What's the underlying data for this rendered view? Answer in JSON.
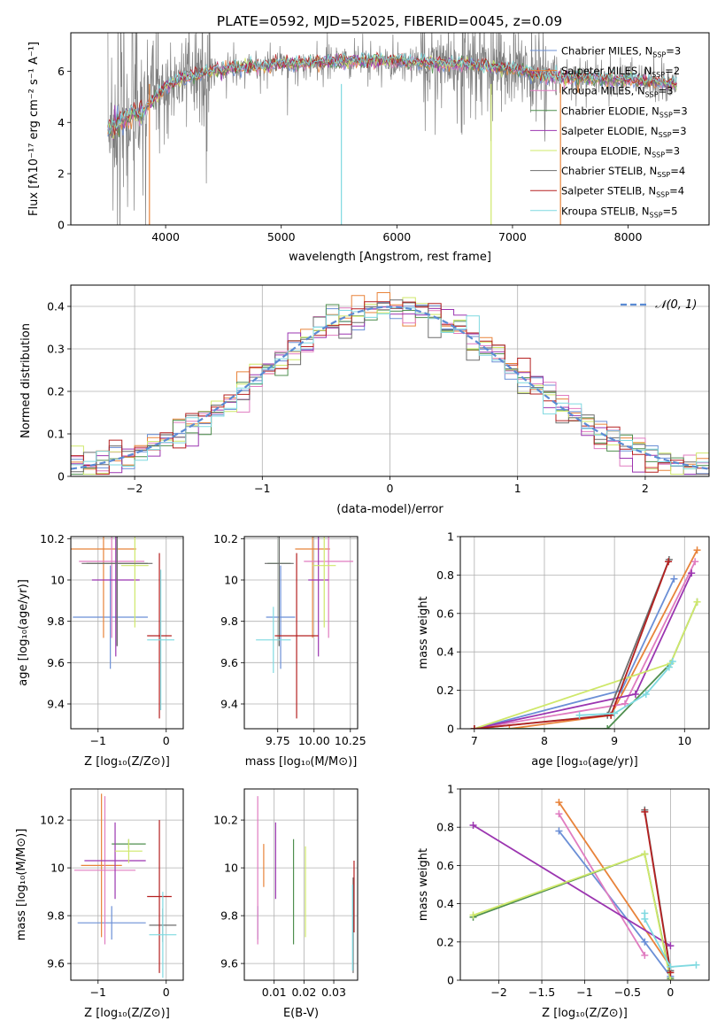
{
  "figure_title": "PLATE=0592, MJD=52025, FIBERID=0045, z=0.09",
  "colors": {
    "Chabrier MILES": "#6b8fd6",
    "Salpeter MILES": "#e8833a",
    "Kroupa MILES": "#e07cc0",
    "Chabrier ELODIE": "#4f8f4f",
    "Salpeter ELODIE": "#9b35b0",
    "Kroupa ELODIE": "#cfe86a",
    "Chabrier STELIB": "#6e6e6e",
    "Salpeter STELIB": "#b52020",
    "Kroupa STELIB": "#7fd9e0",
    "data": "#7f7f7f",
    "normal": "#5b8bd4"
  },
  "chart_data": [
    {
      "id": "spectrum",
      "type": "line",
      "xlabel": "wavelength [Angstrom, rest frame]",
      "ylabel": "Flux [fλ10⁻¹⁷ erg cm⁻² s⁻¹ A⁻¹]",
      "xlim": [
        3180,
        8700
      ],
      "ylim": [
        0,
        7.5
      ],
      "xticks": [
        4000,
        5000,
        6000,
        7000,
        8000
      ],
      "yticks": [
        0,
        2,
        4,
        6
      ],
      "grid": false,
      "legend_position": "right",
      "continuum": {
        "x": [
          3500,
          3600,
          3700,
          3800,
          3900,
          4000,
          4100,
          4200,
          4400,
          4600,
          4800,
          5000,
          5200,
          5400,
          5600,
          5800,
          6000,
          6200,
          6400,
          6600,
          6800,
          7000,
          7200,
          7400,
          7600,
          7800,
          8000,
          8200,
          8400
        ],
        "y": [
          3.7,
          4.0,
          4.3,
          4.4,
          4.9,
          5.4,
          5.6,
          5.8,
          6.0,
          6.1,
          6.2,
          6.3,
          6.3,
          6.35,
          6.4,
          6.4,
          6.4,
          6.35,
          6.3,
          6.3,
          6.2,
          6.1,
          5.9,
          5.75,
          5.75,
          5.7,
          5.65,
          5.6,
          5.5
        ]
      },
      "series_legend": [
        {
          "name": "Chabrier MILES",
          "nssp": "3"
        },
        {
          "name": "Salpeter MILES",
          "nssp": "2"
        },
        {
          "name": "Kroupa MILES",
          "nssp": "3"
        },
        {
          "name": "Chabrier ELODIE",
          "nssp": "3"
        },
        {
          "name": "Salpeter ELODIE",
          "nssp": "3"
        },
        {
          "name": "Kroupa ELODIE",
          "nssp": "3"
        },
        {
          "name": "Chabrier STELIB",
          "nssp": "4"
        },
        {
          "name": "Salpeter STELIB",
          "nssp": "4"
        },
        {
          "name": "Kroupa STELIB",
          "nssp": "5"
        }
      ]
    },
    {
      "id": "residuals",
      "type": "line",
      "xlabel": "(data-model)/error",
      "ylabel": "Normed distribution",
      "xlim": [
        -2.5,
        2.5
      ],
      "ylim": [
        0,
        0.45
      ],
      "xticks": [
        -2,
        -1,
        0,
        1,
        2
      ],
      "yticks": [
        0.0,
        0.1,
        0.2,
        0.3,
        0.4
      ],
      "grid": true,
      "legend": "𝒩(0, 1)",
      "legend_position": "top-right",
      "bin_width": 0.1
    },
    {
      "id": "age_Z",
      "type": "scatter",
      "xlabel": "Z [log₁₀(Z/Z⊙)]",
      "ylabel": "age  [log₁₀(age/yr)]",
      "xlim": [
        -1.4,
        0.25
      ],
      "ylim": [
        9.28,
        10.21
      ],
      "xticks": [
        -1,
        0
      ],
      "yticks": [
        9.4,
        9.6,
        9.8,
        10.0,
        10.2
      ],
      "grid": true,
      "points": [
        {
          "s": "Chabrier MILES",
          "x": -0.82,
          "y": 9.82,
          "xerr": 0.55,
          "yerr": 0.25
        },
        {
          "s": "Salpeter MILES",
          "x": -0.92,
          "y": 10.15,
          "xerr": 0.48,
          "yerr": 0.43
        },
        {
          "s": "Kroupa MILES",
          "x": -0.8,
          "y": 10.09,
          "xerr": 0.48,
          "yerr": 0.37
        },
        {
          "s": "Chabrier ELODIE",
          "x": -0.72,
          "y": 10.08,
          "xerr": 0.45,
          "yerr": 0.4
        },
        {
          "s": "Salpeter ELODIE",
          "x": -0.74,
          "y": 10.0,
          "xerr": 0.35,
          "yerr": 0.37
        },
        {
          "s": "Kroupa ELODIE",
          "x": -0.46,
          "y": 10.07,
          "xerr": 0.2,
          "yerr": 0.3
        },
        {
          "s": "Chabrier STELIB",
          "x": -0.72,
          "y": 10.08,
          "xerr": 0.52,
          "yerr": 0.4
        },
        {
          "s": "Salpeter STELIB",
          "x": -0.1,
          "y": 9.73,
          "xerr": 0.18,
          "yerr": 0.4
        },
        {
          "s": "Kroupa STELIB",
          "x": -0.08,
          "y": 9.71,
          "xerr": 0.2,
          "yerr": 0.34
        }
      ]
    },
    {
      "id": "age_mass",
      "type": "scatter",
      "xlabel": "mass [log₁₀(M/M⊙)]",
      "ylabel": "",
      "xlim": [
        9.52,
        10.3
      ],
      "ylim": [
        9.28,
        10.21
      ],
      "xticks": [
        9.75,
        10.0,
        10.25
      ],
      "xtick_labels": [
        "9.75",
        "10.00",
        "10.25"
      ],
      "yticks": [
        9.4,
        9.6,
        9.8,
        10.0,
        10.2
      ],
      "grid": true,
      "points": [
        {
          "s": "Chabrier MILES",
          "x": 9.77,
          "y": 9.82,
          "xerr": 0.1,
          "yerr": 0.25
        },
        {
          "s": "Salpeter MILES",
          "x": 9.99,
          "y": 10.15,
          "xerr": 0.12,
          "yerr": 0.43
        },
        {
          "s": "Kroupa MILES",
          "x": 10.1,
          "y": 10.09,
          "xerr": 0.17,
          "yerr": 0.37
        },
        {
          "s": "Chabrier ELODIE",
          "x": 9.76,
          "y": 10.08,
          "xerr": 0.08,
          "yerr": 0.4
        },
        {
          "s": "Salpeter ELODIE",
          "x": 10.03,
          "y": 10.0,
          "xerr": 0.07,
          "yerr": 0.37
        },
        {
          "s": "Kroupa ELODIE",
          "x": 10.07,
          "y": 10.07,
          "xerr": 0.08,
          "yerr": 0.3
        },
        {
          "s": "Chabrier STELIB",
          "x": 9.76,
          "y": 10.08,
          "xerr": 0.1,
          "yerr": 0.4
        },
        {
          "s": "Salpeter STELIB",
          "x": 9.88,
          "y": 9.73,
          "xerr": 0.15,
          "yerr": 0.4
        },
        {
          "s": "Kroupa STELIB",
          "x": 9.72,
          "y": 9.71,
          "xerr": 0.12,
          "yerr": 0.16
        }
      ]
    },
    {
      "id": "weight_age",
      "type": "line",
      "xlabel": "age  [log₁₀(age/yr)]",
      "ylabel": "mass weight",
      "xlim": [
        6.8,
        10.35
      ],
      "ylim": [
        0,
        1
      ],
      "xticks": [
        7,
        8,
        9,
        10
      ],
      "yticks": [
        0.0,
        0.2,
        0.4,
        0.6,
        0.8,
        1.0
      ],
      "grid": true,
      "series": [
        {
          "name": "Chabrier MILES",
          "x": [
            7.0,
            9.1,
            9.85
          ],
          "y": [
            0.0,
            0.2,
            0.78
          ]
        },
        {
          "name": "Salpeter MILES",
          "x": [
            7.5,
            8.95,
            10.18
          ],
          "y": [
            0.0,
            0.07,
            0.93
          ]
        },
        {
          "name": "Kroupa MILES",
          "x": [
            7.0,
            9.15,
            10.15
          ],
          "y": [
            0.0,
            0.13,
            0.87
          ]
        },
        {
          "name": "Chabrier ELODIE",
          "x": [
            7.0,
            8.9,
            9.8,
            10.18
          ],
          "y": [
            0.0,
            0.0,
            0.34,
            0.66
          ]
        },
        {
          "name": "Salpeter ELODIE",
          "x": [
            7.0,
            9.3,
            10.1
          ],
          "y": [
            0.0,
            0.18,
            0.81
          ]
        },
        {
          "name": "Kroupa ELODIE",
          "x": [
            7.0,
            9.8,
            10.18
          ],
          "y": [
            0.0,
            0.34,
            0.66
          ]
        },
        {
          "name": "Chabrier STELIB",
          "x": [
            7.0,
            8.9,
            9.78
          ],
          "y": [
            0.0,
            0.07,
            0.88
          ]
        },
        {
          "name": "Salpeter STELIB",
          "x": [
            7.0,
            8.95,
            9.77
          ],
          "y": [
            0.0,
            0.07,
            0.87
          ]
        },
        {
          "name": "Kroupa STELIB",
          "x": [
            8.5,
            9.0,
            9.45,
            9.78,
            9.83
          ],
          "y": [
            0.07,
            0.08,
            0.18,
            0.32,
            0.35
          ]
        }
      ]
    },
    {
      "id": "mass_Z",
      "type": "scatter",
      "xlabel": "Z [log₁₀(Z/Z⊙)]",
      "ylabel": "mass [log₁₀(M/M⊙)]",
      "xlim": [
        -1.4,
        0.25
      ],
      "ylim": [
        9.53,
        10.33
      ],
      "xticks": [
        -1,
        0
      ],
      "yticks": [
        9.6,
        9.8,
        10.0,
        10.2
      ],
      "grid": true,
      "points": [
        {
          "s": "Chabrier MILES",
          "x": -0.8,
          "y": 9.77,
          "xerr": 0.5,
          "yerr": 0.07
        },
        {
          "s": "Salpeter MILES",
          "x": -0.95,
          "y": 10.01,
          "xerr": 0.3,
          "yerr": 0.3
        },
        {
          "s": "Kroupa MILES",
          "x": -0.9,
          "y": 9.99,
          "xerr": 0.45,
          "yerr": 0.31
        },
        {
          "s": "Chabrier ELODIE",
          "x": -0.55,
          "y": 10.1,
          "xerr": 0.25,
          "yerr": 0.02
        },
        {
          "s": "Salpeter ELODIE",
          "x": -0.75,
          "y": 10.03,
          "xerr": 0.45,
          "yerr": 0.16
        },
        {
          "s": "Kroupa ELODIE",
          "x": -0.55,
          "y": 10.07,
          "xerr": 0.2,
          "yerr": 0.05
        },
        {
          "s": "Chabrier STELIB",
          "x": -0.05,
          "y": 9.76,
          "xerr": 0.2,
          "yerr": 0.07
        },
        {
          "s": "Salpeter STELIB",
          "x": -0.1,
          "y": 9.88,
          "xerr": 0.18,
          "yerr": 0.32
        },
        {
          "s": "Kroupa STELIB",
          "x": -0.05,
          "y": 9.72,
          "xerr": 0.2,
          "yerr": 0.18
        }
      ]
    },
    {
      "id": "mass_ebv",
      "type": "scatter",
      "xlabel": "E(B-V)",
      "ylabel": "",
      "xlim": [
        0.0,
        0.038
      ],
      "ylim": [
        9.53,
        10.33
      ],
      "xticks": [
        0.01,
        0.02,
        0.03
      ],
      "yticks": [
        9.6,
        9.8,
        10.0,
        10.2
      ],
      "grid": true,
      "points": [
        {
          "s": "Chabrier MILES",
          "x": 0.0045,
          "y": 9.77,
          "xerr": 0,
          "yerr": 0.07
        },
        {
          "s": "Salpeter MILES",
          "x": 0.0065,
          "y": 10.01,
          "xerr": 0,
          "yerr": 0.09
        },
        {
          "s": "Kroupa MILES",
          "x": 0.0045,
          "y": 9.99,
          "xerr": 0,
          "yerr": 0.31
        },
        {
          "s": "Chabrier ELODIE",
          "x": 0.0165,
          "y": 9.9,
          "xerr": 0,
          "yerr": 0.22
        },
        {
          "s": "Salpeter ELODIE",
          "x": 0.0105,
          "y": 10.03,
          "xerr": 0,
          "yerr": 0.16
        },
        {
          "s": "Kroupa ELODIE",
          "x": 0.0205,
          "y": 9.9,
          "xerr": 0,
          "yerr": 0.19
        },
        {
          "s": "Chabrier STELIB",
          "x": 0.0365,
          "y": 9.76,
          "xerr": 0,
          "yerr": 0.2
        },
        {
          "s": "Salpeter STELIB",
          "x": 0.0368,
          "y": 9.88,
          "xerr": 0,
          "yerr": 0.15
        },
        {
          "s": "Kroupa STELIB",
          "x": 0.0363,
          "y": 9.75,
          "xerr": 0,
          "yerr": 0.18
        }
      ]
    },
    {
      "id": "weight_Z",
      "type": "line",
      "xlabel": "Z [log₁₀(Z/Z⊙)]",
      "ylabel": "mass weight",
      "xlim": [
        -2.45,
        0.45
      ],
      "ylim": [
        0,
        1
      ],
      "xticks": [
        -2.0,
        -1.5,
        -1.0,
        -0.5,
        0.0
      ],
      "yticks": [
        0.0,
        0.2,
        0.4,
        0.6,
        0.8,
        1.0
      ],
      "grid": true,
      "series": [
        {
          "name": "Chabrier MILES",
          "x": [
            -1.3,
            -0.3,
            0.0
          ],
          "y": [
            0.78,
            0.2,
            0.02
          ]
        },
        {
          "name": "Salpeter MILES",
          "x": [
            -1.3,
            0.0
          ],
          "y": [
            0.93,
            0.07
          ]
        },
        {
          "name": "Kroupa MILES",
          "x": [
            -1.3,
            -0.3
          ],
          "y": [
            0.87,
            0.13
          ]
        },
        {
          "name": "Chabrier ELODIE",
          "x": [
            -2.3,
            -0.3,
            0.0
          ],
          "y": [
            0.33,
            0.66,
            0.01
          ]
        },
        {
          "name": "Salpeter ELODIE",
          "x": [
            -2.3,
            0.0
          ],
          "y": [
            0.81,
            0.18
          ]
        },
        {
          "name": "Kroupa ELODIE",
          "x": [
            -2.3,
            -0.3,
            0.0
          ],
          "y": [
            0.34,
            0.66,
            0.0
          ]
        },
        {
          "name": "Chabrier STELIB",
          "x": [
            -0.3,
            0.0
          ],
          "y": [
            0.89,
            0.05
          ]
        },
        {
          "name": "Salpeter STELIB",
          "x": [
            -0.3,
            0.0
          ],
          "y": [
            0.88,
            0.04
          ]
        },
        {
          "name": "Kroupa STELIB",
          "x": [
            -0.3,
            -0.3,
            0.0,
            0.3
          ],
          "y": [
            0.35,
            0.32,
            0.07,
            0.08
          ]
        }
      ]
    }
  ]
}
